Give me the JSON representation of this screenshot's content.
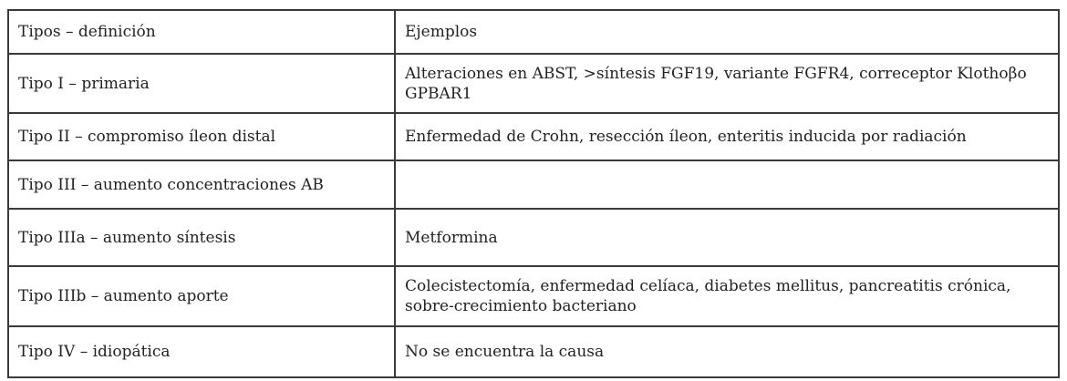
{
  "header": {
    "col1": "Tipos – definición",
    "col2": "Ejemplos"
  },
  "rows": [
    {
      "tipo": "Tipo I – primaria",
      "ejemplos": "Alteraciones en ABST, >síntesis FGF19, variante FGFR4, correceptor Klothoβo GPBAR1"
    },
    {
      "tipo": "Tipo II – compromiso íleon distal",
      "ejemplos": "Enfermedad de Crohn, resección íleon, enteritis inducida por radiación"
    },
    {
      "tipo": "Tipo III – aumento concentraciones AB",
      "ejemplos": ""
    },
    {
      "tipo": "Tipo IIIa – aumento síntesis",
      "ejemplos": "Metformina"
    },
    {
      "tipo": "Tipo IIIb – aumento aporte",
      "ejemplos": "Colecistectomía, enfermedad celíaca, diabetes mellitus, pancreatitis crónica, sobre-crecimiento bacteriano"
    },
    {
      "tipo": "Tipo IV – idiopática",
      "ejemplos": "No se encuentra la causa"
    }
  ]
}
